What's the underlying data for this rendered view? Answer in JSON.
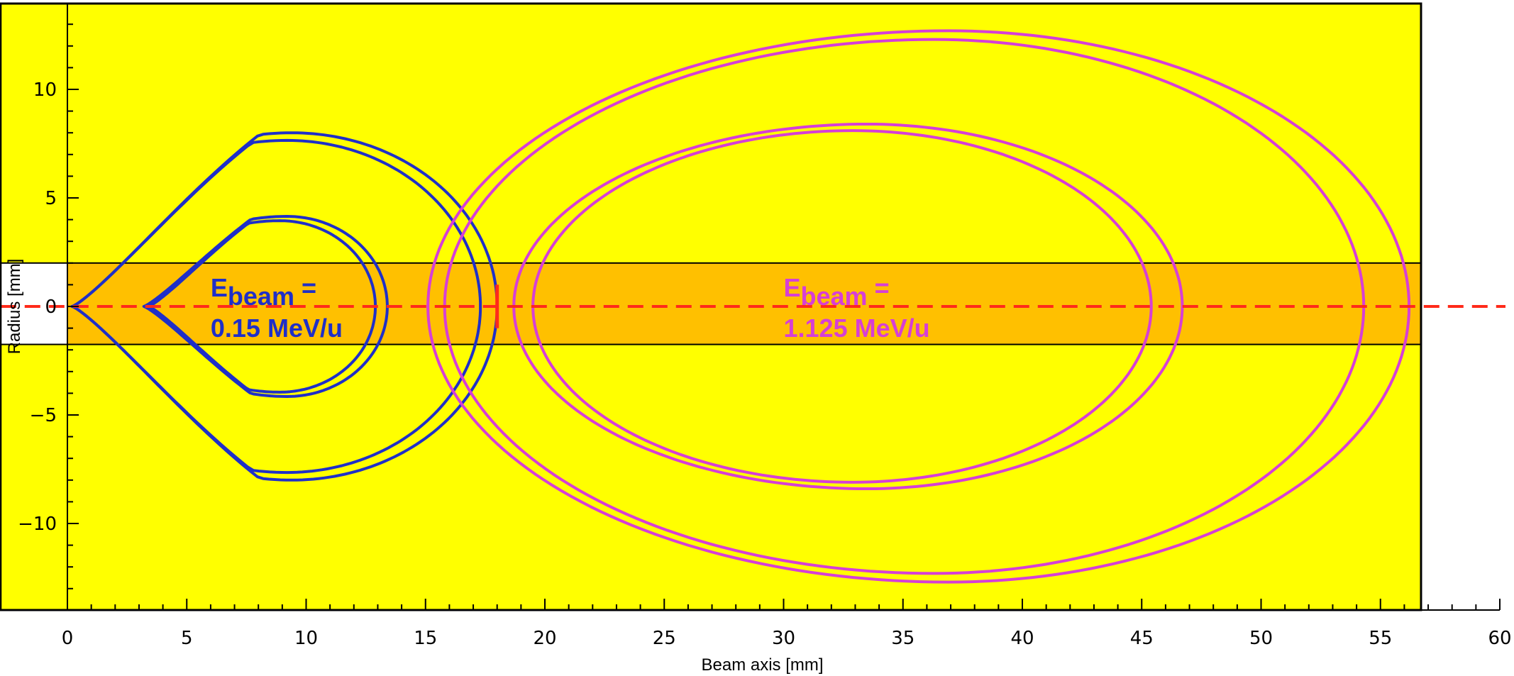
{
  "chart_data": {
    "type": "line",
    "title": "",
    "xlabel": "Beam axis [mm]",
    "ylabel": "Radius [mm]",
    "xlim": [
      0,
      60
    ],
    "ylim": [
      -14,
      14
    ],
    "frame_xlim": [
      -2.8,
      56.7
    ],
    "x_ticks": [
      0,
      5,
      10,
      15,
      20,
      25,
      30,
      35,
      40,
      45,
      50,
      55,
      60
    ],
    "y_ticks": [
      -10,
      -5,
      0,
      5,
      10
    ],
    "x_tick_labels": [
      "0",
      "5",
      "10",
      "15",
      "20",
      "25",
      "30",
      "35",
      "40",
      "45",
      "50",
      "55",
      "60"
    ],
    "y_tick_labels": [
      "−10",
      "−5",
      "0",
      "5",
      "10"
    ],
    "colors": {
      "background": "#ffff00",
      "band": "#ffc000",
      "low_energy": "#1f2fc8",
      "high_energy": "#d63fd6",
      "beam_axis": "#ff2a1a"
    },
    "band": {
      "y_range": [
        -1.75,
        2.0
      ],
      "x_range": [
        -2.8,
        56.7
      ]
    },
    "beam_axis_line": {
      "y": 0,
      "x_range": [
        -2.8,
        60
      ],
      "style": "dashed"
    },
    "marker": {
      "x": 18.0,
      "y_range": [
        -1.0,
        1.0
      ]
    },
    "series": [
      {
        "group": "low",
        "x0": 0.2,
        "x1": 18.0,
        "xm": 9.4,
        "h": 8.0,
        "shape": "teardrop"
      },
      {
        "group": "low",
        "x0": 0.2,
        "x1": 17.3,
        "xm": 9.2,
        "h": 7.65,
        "shape": "teardrop"
      },
      {
        "group": "low",
        "x0": 3.2,
        "x1": 13.4,
        "xm": 9.2,
        "h": 4.15,
        "shape": "teardrop"
      },
      {
        "group": "low",
        "x0": 3.4,
        "x1": 12.9,
        "xm": 8.9,
        "h": 3.95,
        "shape": "teardrop"
      },
      {
        "group": "high",
        "x0": 15.1,
        "x1": 56.2,
        "xm": 36.9,
        "h": 12.7,
        "shape": "ellipse"
      },
      {
        "group": "high",
        "x0": 15.8,
        "x1": 54.3,
        "xm": 36.3,
        "h": 12.3,
        "shape": "ellipse"
      },
      {
        "group": "high",
        "x0": 18.7,
        "x1": 46.7,
        "xm": 33.5,
        "h": 8.4,
        "shape": "ellipse"
      },
      {
        "group": "high",
        "x0": 19.5,
        "x1": 45.4,
        "xm": 32.9,
        "h": 8.1,
        "shape": "ellipse"
      }
    ],
    "annotations": {
      "low": {
        "prefix": "E",
        "sub": "beam",
        "suffix": " =",
        "line2": "0.15 MeV/u",
        "x": 6.0,
        "y1": 0.85,
        "y2": -0.95
      },
      "high": {
        "prefix": "E",
        "sub": "beam",
        "suffix": " =",
        "line2": "1.125 MeV/u",
        "x": 30.0,
        "y1": 0.85,
        "y2": -0.95
      }
    }
  }
}
